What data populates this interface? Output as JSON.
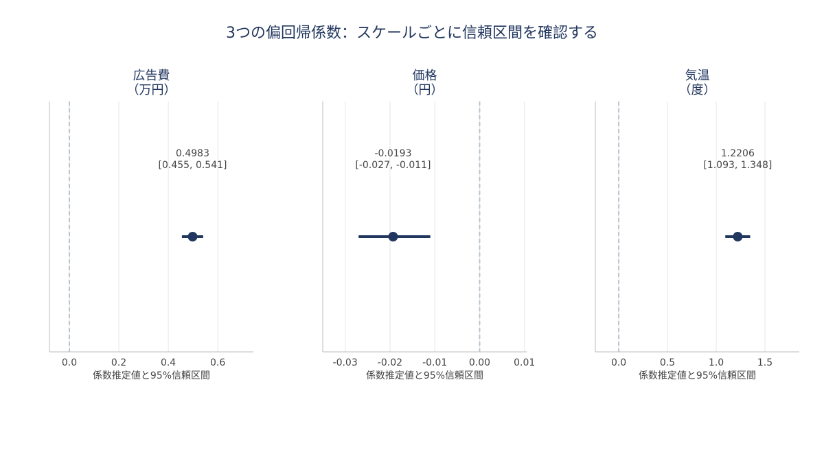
{
  "title": "3つの偏回帰係数：スケールごとに信頼区間を確認する",
  "chart_data": [
    {
      "type": "interval",
      "title": [
        "広告費",
        "（万円）"
      ],
      "xlabel": "係数推定値と95%信頼区間",
      "values": [
        0.4983
      ],
      "ci_low": [
        0.455
      ],
      "ci_high": [
        0.541
      ],
      "interval_labels": [
        "[0.455, 0.541]"
      ],
      "xlim": [
        -0.0806,
        0.744
      ],
      "xticks": [
        {
          "value": 0,
          "label": "0.0"
        },
        {
          "value": 0.2,
          "label": "0.2"
        },
        {
          "value": 0.4,
          "label": "0.4"
        },
        {
          "value": 0.6,
          "label": "0.6"
        }
      ],
      "reference_line": 0,
      "grid": true,
      "color": "#22375f"
    },
    {
      "type": "interval",
      "title": [
        "価格",
        "（円）"
      ],
      "xlabel": "係数推定値と95%信頼区間",
      "values": [
        -0.0193
      ],
      "ci_low": [
        -0.027
      ],
      "ci_high": [
        -0.011
      ],
      "interval_labels": [
        "[-0.027, -0.011]"
      ],
      "xlim": [
        -0.035,
        0.0105
      ],
      "xticks": [
        -0.03,
        -0.02,
        -0.01,
        {
          "value": 0,
          "label": "0.00"
        },
        0.01
      ],
      "reference_line": 0,
      "grid": true,
      "color": "#22375f"
    },
    {
      "type": "interval",
      "title": [
        "気温",
        "（度）"
      ],
      "xlabel": "係数推定値と95%信頼区間",
      "values": [
        1.2206
      ],
      "ci_low": [
        1.093
      ],
      "ci_high": [
        1.348
      ],
      "interval_labels": [
        "[1.093, 1.348]"
      ],
      "xlim": [
        -0.24,
        1.852
      ],
      "xticks": [
        {
          "value": 0,
          "label": "0.0"
        },
        0.5,
        {
          "value": 1,
          "label": "1.0"
        },
        1.5
      ],
      "reference_line": 0,
      "grid": true,
      "color": "#22375f"
    }
  ]
}
